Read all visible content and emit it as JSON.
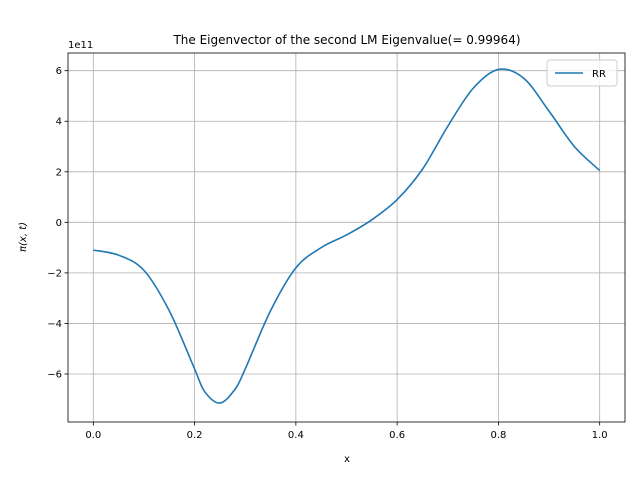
{
  "chart_data": {
    "type": "line",
    "title": "The Eigenvector of the second LM Eigenvalue(= 0.99964)",
    "xlabel": "x",
    "ylabel": "π(x, t)",
    "y_offset_text": "1e11",
    "xlim": [
      -0.05,
      1.05
    ],
    "ylim": [
      -7.9,
      6.7
    ],
    "y_scale_factor": 100000000000.0,
    "x_ticks": [
      0.0,
      0.2,
      0.4,
      0.6,
      0.8,
      1.0
    ],
    "x_tick_labels": [
      "0.0",
      "0.2",
      "0.4",
      "0.6",
      "0.8",
      "1.0"
    ],
    "y_ticks": [
      -6,
      -4,
      -2,
      0,
      2,
      4,
      6
    ],
    "y_tick_labels": [
      "−6",
      "−4",
      "−2",
      "0",
      "2",
      "4",
      "6"
    ],
    "grid": true,
    "legend_position": "top-right",
    "series": [
      {
        "name": "RR",
        "color": "#1f77b4",
        "x": [
          0.0,
          0.05,
          0.1,
          0.15,
          0.2,
          0.22,
          0.25,
          0.28,
          0.3,
          0.35,
          0.4,
          0.45,
          0.5,
          0.55,
          0.6,
          0.65,
          0.7,
          0.75,
          0.8,
          0.85,
          0.9,
          0.95,
          1.0
        ],
        "y": [
          -1.1,
          -1.3,
          -1.9,
          -3.5,
          -5.8,
          -6.7,
          -7.15,
          -6.6,
          -5.8,
          -3.5,
          -1.8,
          -1.0,
          -0.5,
          0.1,
          0.9,
          2.1,
          3.8,
          5.3,
          6.05,
          5.7,
          4.4,
          3.0,
          2.05
        ]
      }
    ]
  }
}
